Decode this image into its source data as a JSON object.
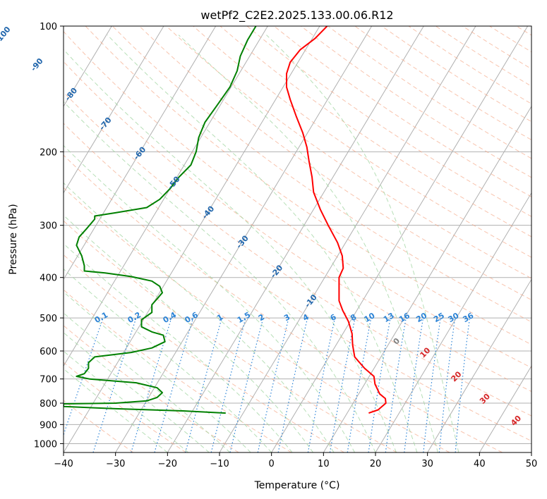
{
  "chart_data": {
    "type": "line",
    "diagram": "skew-T log-P",
    "title": "wetPf2_C2E2.2025.133.00.06.R12",
    "xlabel": "Temperature (°C)",
    "ylabel": "Pressure (hPa)",
    "xlim": [
      -40,
      50
    ],
    "ylim": [
      1050,
      100
    ],
    "yscale": "log",
    "x_ticks": [
      -40,
      -30,
      -20,
      -10,
      0,
      10,
      20,
      30,
      40,
      50
    ],
    "y_ticks": [
      100,
      200,
      300,
      400,
      500,
      600,
      700,
      800,
      900,
      1000
    ],
    "grid": true,
    "colors": {
      "temperature": "#ff0000",
      "dewpoint": "#008000",
      "isotherm": "#b0b0b0",
      "dry_adiabat": "#f4a582",
      "moist_adiabat": "#9fd49f",
      "mixing_ratio": "#2b83d6",
      "isotherm_label": "#2166ac",
      "dry_adiabat_label": "#d62728"
    },
    "series": [
      {
        "key": "temperature",
        "points": [
          {
            "p": 845,
            "t": 18.7
          },
          {
            "p": 830,
            "t": 20.5
          },
          {
            "p": 800,
            "t": 22.0
          },
          {
            "p": 780,
            "t": 21.9
          },
          {
            "p": 760,
            "t": 20.8
          },
          {
            "p": 720,
            "t": 19.9
          },
          {
            "p": 690,
            "t": 19.7
          },
          {
            "p": 660,
            "t": 17.9
          },
          {
            "p": 620,
            "t": 16.0
          },
          {
            "p": 580,
            "t": 15.6
          },
          {
            "p": 545,
            "t": 15.5
          },
          {
            "p": 510,
            "t": 14.8
          },
          {
            "p": 480,
            "t": 13.7
          },
          {
            "p": 455,
            "t": 13.0
          },
          {
            "p": 430,
            "t": 13.0
          },
          {
            "p": 400,
            "t": 13.0
          },
          {
            "p": 380,
            "t": 13.8
          },
          {
            "p": 355,
            "t": 13.6
          },
          {
            "p": 330,
            "t": 12.7
          },
          {
            "p": 300,
            "t": 10.9
          },
          {
            "p": 275,
            "t": 9.4
          },
          {
            "p": 250,
            "t": 8.1
          },
          {
            "p": 230,
            "t": 7.8
          },
          {
            "p": 210,
            "t": 7.2
          },
          {
            "p": 195,
            "t": 6.8
          },
          {
            "p": 180,
            "t": 6.0
          },
          {
            "p": 165,
            "t": 4.8
          },
          {
            "p": 150,
            "t": 3.6
          },
          {
            "p": 140,
            "t": 2.9
          },
          {
            "p": 130,
            "t": 2.9
          },
          {
            "p": 122,
            "t": 3.6
          },
          {
            "p": 114,
            "t": 5.5
          },
          {
            "p": 107,
            "t": 8.4
          },
          {
            "p": 100,
            "t": 10.7
          }
        ]
      },
      {
        "key": "dewpoint",
        "points": [
          {
            "p": 845,
            "t": -8.8
          },
          {
            "p": 835,
            "t": -17.0
          },
          {
            "p": 825,
            "t": -30.0
          },
          {
            "p": 815,
            "t": -40.0
          },
          {
            "p": 803,
            "t": -40.0
          },
          {
            "p": 800,
            "t": -30.0
          },
          {
            "p": 790,
            "t": -24.0
          },
          {
            "p": 775,
            "t": -22.0
          },
          {
            "p": 755,
            "t": -21.0
          },
          {
            "p": 735,
            "t": -22.0
          },
          {
            "p": 715,
            "t": -26.0
          },
          {
            "p": 700,
            "t": -35.0
          },
          {
            "p": 690,
            "t": -37.5
          },
          {
            "p": 680,
            "t": -36.0
          },
          {
            "p": 660,
            "t": -35.2
          },
          {
            "p": 640,
            "t": -35.2
          },
          {
            "p": 620,
            "t": -34.0
          },
          {
            "p": 605,
            "t": -27.0
          },
          {
            "p": 590,
            "t": -23.0
          },
          {
            "p": 570,
            "t": -20.5
          },
          {
            "p": 550,
            "t": -20.8
          },
          {
            "p": 540,
            "t": -23.0
          },
          {
            "p": 525,
            "t": -25.0
          },
          {
            "p": 505,
            "t": -25.0
          },
          {
            "p": 485,
            "t": -23.0
          },
          {
            "p": 465,
            "t": -23.0
          },
          {
            "p": 450,
            "t": -22.0
          },
          {
            "p": 435,
            "t": -21.0
          },
          {
            "p": 420,
            "t": -21.5
          },
          {
            "p": 408,
            "t": -23.0
          },
          {
            "p": 398,
            "t": -27.0
          },
          {
            "p": 390,
            "t": -32.0
          },
          {
            "p": 386,
            "t": -36.0
          },
          {
            "p": 375,
            "t": -36.0
          },
          {
            "p": 355,
            "t": -36.5
          },
          {
            "p": 335,
            "t": -37.5
          },
          {
            "p": 320,
            "t": -37.0
          },
          {
            "p": 305,
            "t": -35.5
          },
          {
            "p": 290,
            "t": -34.0
          },
          {
            "p": 285,
            "t": -34.0
          },
          {
            "p": 280,
            "t": -30.0
          },
          {
            "p": 272,
            "t": -24.0
          },
          {
            "p": 260,
            "t": -21.5
          },
          {
            "p": 245,
            "t": -19.5
          },
          {
            "p": 230,
            "t": -17.8
          },
          {
            "p": 215,
            "t": -15.5
          },
          {
            "p": 200,
            "t": -14.5
          },
          {
            "p": 185,
            "t": -14.0
          },
          {
            "p": 170,
            "t": -12.8
          },
          {
            "p": 155,
            "t": -10.5
          },
          {
            "p": 140,
            "t": -8.0
          },
          {
            "p": 128,
            "t": -6.6
          },
          {
            "p": 118,
            "t": -6.0
          },
          {
            "p": 108,
            "t": -4.6
          },
          {
            "p": 100,
            "t": -3.0
          }
        ]
      }
    ],
    "isotherm_labels": [
      -100,
      -90,
      -80,
      -70,
      -60,
      -50,
      -40,
      -30,
      -20,
      -10
    ],
    "mixing_ratio_labels": [
      "0.1",
      "0.2",
      "0.4",
      "0.6",
      "1",
      "1.5",
      "2",
      "3",
      "4",
      "6",
      "8",
      "10",
      "13",
      "16",
      "20",
      "25",
      "30",
      "36"
    ],
    "dry_adiabat_labels": [
      "0",
      "10",
      "20",
      "30",
      "40"
    ]
  }
}
